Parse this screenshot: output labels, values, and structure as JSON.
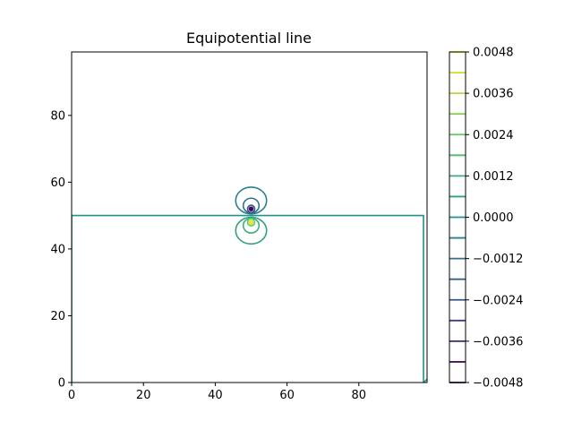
{
  "chart_data": {
    "type": "contour",
    "title": "Equipotential line",
    "xlabel": "",
    "ylabel": "",
    "xlim": [
      0,
      99
    ],
    "ylim": [
      0,
      99
    ],
    "x_ticks": [
      0,
      20,
      40,
      60,
      80
    ],
    "x_tick_labels": [
      "0",
      "20",
      "40",
      "60",
      "80"
    ],
    "y_ticks": [
      0,
      20,
      40,
      60,
      80
    ],
    "y_tick_labels": [
      "0",
      "20",
      "40",
      "60",
      "80"
    ],
    "grid": false,
    "colorbar": {
      "range": [
        -0.0048,
        0.0048
      ],
      "levels": [
        -0.0048,
        -0.0042,
        -0.0036,
        -0.003,
        -0.0024,
        -0.0018,
        -0.0012,
        -0.0006,
        0.0,
        0.0006,
        0.0012,
        0.0018,
        0.0024,
        0.003,
        0.0036,
        0.0042,
        0.0048
      ],
      "tick_values": [
        -0.0048,
        -0.0036,
        -0.0024,
        -0.0012,
        0.0,
        0.0012,
        0.0024,
        0.0036,
        0.0048
      ],
      "tick_labels": [
        "−0.0048",
        "−0.0036",
        "−0.0024",
        "−0.0012",
        "0.0000",
        "0.0012",
        "0.0024",
        "0.0036",
        "0.0048"
      ],
      "colormap": "viridis"
    },
    "zero_contour": [
      [
        0,
        0
      ],
      [
        0,
        50
      ],
      [
        98,
        50
      ],
      [
        98,
        0
      ],
      [
        99,
        1
      ]
    ],
    "positive_source": {
      "x": 50,
      "y": 48
    },
    "negative_source": {
      "x": 50,
      "y": 52
    },
    "positive_loops": [
      {
        "level": 0.0006,
        "center": [
          50,
          45.5
        ],
        "rx": 4.3,
        "ry": 4.0
      },
      {
        "level": 0.0012,
        "center": [
          50,
          47.0
        ],
        "rx": 2.2,
        "ry": 2.2
      },
      {
        "level": 0.0024,
        "center": [
          50,
          48.0
        ],
        "rx": 1.0,
        "ry": 1.1
      },
      {
        "level": 0.0036,
        "center": [
          50,
          48.0
        ],
        "rx": 0.5,
        "ry": 0.55
      }
    ],
    "negative_loops": [
      {
        "level": -0.0006,
        "center": [
          50,
          54.5
        ],
        "rx": 4.3,
        "ry": 4.0
      },
      {
        "level": -0.0012,
        "center": [
          50,
          53.0
        ],
        "rx": 2.2,
        "ry": 2.2
      },
      {
        "level": -0.0024,
        "center": [
          50,
          52.0
        ],
        "rx": 1.0,
        "ry": 1.1
      },
      {
        "level": -0.0036,
        "center": [
          50,
          52.0
        ],
        "rx": 0.5,
        "ry": 0.55
      }
    ]
  }
}
